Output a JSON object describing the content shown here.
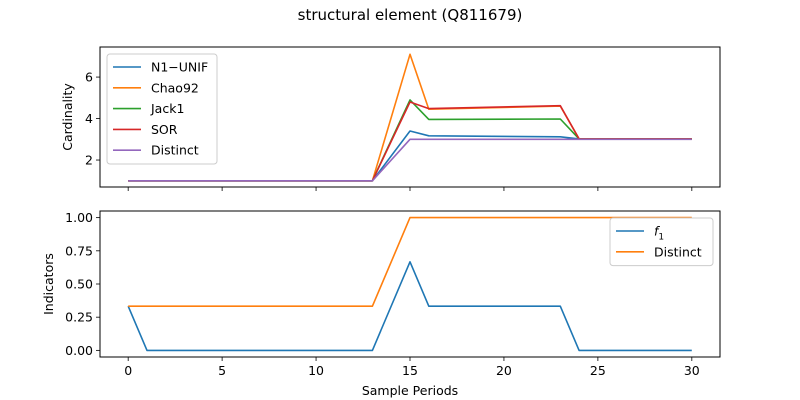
{
  "figure": {
    "title": "structural element (Q811679)"
  },
  "colors": {
    "blue": "#1f77b4",
    "orange": "#ff7f0e",
    "green": "#2ca02c",
    "red": "#d62728",
    "purple": "#9467bd"
  },
  "chart_data": [
    {
      "type": "line",
      "xlabel": "",
      "ylabel": "Cardinality",
      "xlim": [
        -1.5,
        31.5
      ],
      "ylim": [
        0.7,
        7.45
      ],
      "yticks": [
        2,
        4,
        6
      ],
      "xticks": [
        0,
        5,
        10,
        15,
        20,
        25,
        30
      ],
      "show_xtick_labels": false,
      "legend": "top-left",
      "series": [
        {
          "name": "N1−UNIF",
          "color": "#1f77b4",
          "x": [
            0,
            13,
            15,
            16,
            23,
            24,
            30
          ],
          "y": [
            1,
            1,
            3.4,
            3.17,
            3.12,
            3.02,
            3.02
          ]
        },
        {
          "name": "Chao92",
          "color": "#ff7f0e",
          "x": [
            0,
            13,
            15,
            16,
            23,
            24,
            30
          ],
          "y": [
            1,
            1,
            7.1,
            4.45,
            4.6,
            3.02,
            3.02
          ]
        },
        {
          "name": "Jack1",
          "color": "#2ca02c",
          "x": [
            0,
            13,
            15,
            16,
            23,
            24,
            30
          ],
          "y": [
            1,
            1,
            4.9,
            3.96,
            3.98,
            3.02,
            3.02
          ]
        },
        {
          "name": "SOR",
          "color": "#d62728",
          "x": [
            0,
            13,
            15,
            16,
            23,
            24,
            30
          ],
          "y": [
            1,
            1,
            4.8,
            4.48,
            4.62,
            3.02,
            3.02
          ]
        },
        {
          "name": "Distinct",
          "color": "#9467bd",
          "x": [
            0,
            13,
            15,
            30
          ],
          "y": [
            1,
            1,
            3,
            3
          ]
        }
      ]
    },
    {
      "type": "line",
      "xlabel": "Sample Periods",
      "ylabel": "Indicators",
      "xlim": [
        -1.5,
        31.5
      ],
      "ylim": [
        -0.05,
        1.05
      ],
      "yticks": [
        0.0,
        0.25,
        0.5,
        0.75,
        1.0
      ],
      "ytick_labels": [
        "0.00",
        "0.25",
        "0.50",
        "0.75",
        "1.00"
      ],
      "xticks": [
        0,
        5,
        10,
        15,
        20,
        25,
        30
      ],
      "xtick_labels": [
        "0",
        "5",
        "10",
        "15",
        "20",
        "25",
        "30"
      ],
      "show_xtick_labels": true,
      "legend": "top-right",
      "series": [
        {
          "name": "f",
          "name_subscript": "1",
          "color": "#1f77b4",
          "x": [
            0,
            1,
            13,
            15,
            16,
            23,
            24,
            30
          ],
          "y": [
            0.333,
            0,
            0,
            0.667,
            0.333,
            0.333,
            0,
            0
          ]
        },
        {
          "name": "Distinct",
          "color": "#ff7f0e",
          "x": [
            0,
            13,
            15,
            30
          ],
          "y": [
            0.333,
            0.333,
            1,
            1
          ]
        }
      ]
    }
  ]
}
